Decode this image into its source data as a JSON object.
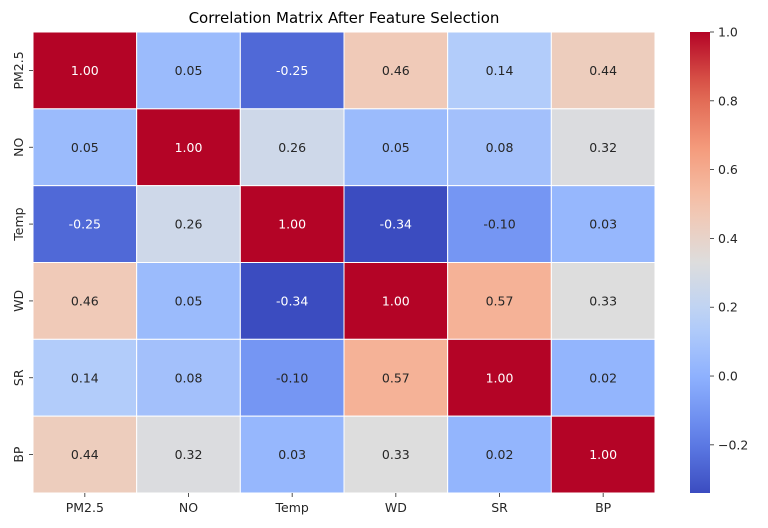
{
  "chart_data": {
    "type": "heatmap",
    "title": "Correlation Matrix After Feature Selection",
    "xlabel": "",
    "ylabel": "",
    "x_categories": [
      "PM2.5",
      "NO",
      "Temp",
      "WD",
      "SR",
      "BP"
    ],
    "y_categories": [
      "PM2.5",
      "NO",
      "Temp",
      "WD",
      "SR",
      "BP"
    ],
    "values": [
      [
        1.0,
        0.05,
        -0.25,
        0.46,
        0.14,
        0.44
      ],
      [
        0.05,
        1.0,
        0.26,
        0.05,
        0.08,
        0.32
      ],
      [
        -0.25,
        0.26,
        1.0,
        -0.34,
        -0.1,
        0.03
      ],
      [
        0.46,
        0.05,
        -0.34,
        1.0,
        0.57,
        0.33
      ],
      [
        0.14,
        0.08,
        -0.1,
        0.57,
        1.0,
        0.02
      ],
      [
        0.44,
        0.32,
        0.03,
        0.33,
        0.02,
        1.0
      ]
    ],
    "value_format": "0.00",
    "colormap": "coolwarm",
    "color_range": [
      -0.34,
      1.0
    ],
    "colorbar": {
      "ticks": [
        -0.2,
        0.0,
        0.2,
        0.4,
        0.6,
        0.8,
        1.0
      ],
      "tick_labels": [
        "−0.2",
        "0.0",
        "0.2",
        "0.4",
        "0.6",
        "0.8",
        "1.0"
      ]
    },
    "legend_placement": "right",
    "grid": false
  }
}
